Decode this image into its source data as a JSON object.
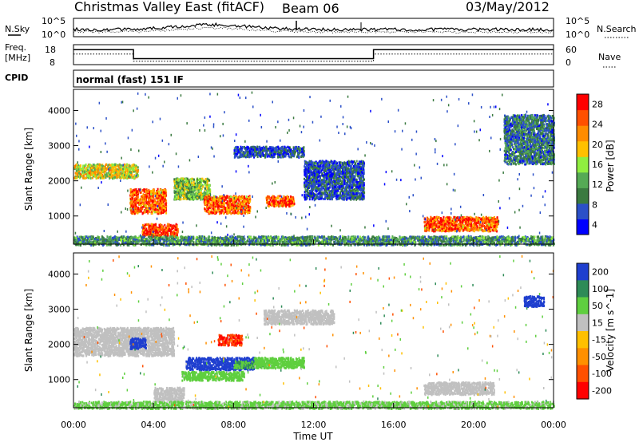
{
  "header": {
    "title": "Christmas Valley East (fitACF)",
    "beam": "Beam 06",
    "date": "03/May/2012"
  },
  "chart_data": [
    {
      "type": "line",
      "panel": "noise",
      "left_label": "N.Sky",
      "right_label": "N.Search",
      "left_ticks": [
        "10^5",
        "10^0"
      ],
      "right_ticks": [
        "10^5",
        "10^0"
      ]
    },
    {
      "type": "line",
      "panel": "frequency",
      "left_label_top": "Freq.",
      "left_label_bottom": "[MHz]",
      "right_label": "Nave",
      "left_ticks": [
        18,
        8
      ],
      "right_ticks": [
        60,
        0
      ],
      "freq_ylim": [
        8,
        18
      ],
      "nave_ylim": [
        0,
        60
      ],
      "freq_series": {
        "x": [
          0,
          3,
          3,
          15,
          15,
          24
        ],
        "y": [
          15.5,
          15.5,
          11,
          11,
          15.5,
          15.5
        ]
      },
      "nave_series": {
        "x": [
          0,
          3,
          3,
          15,
          15,
          24
        ],
        "y": [
          32,
          32,
          10,
          10,
          32,
          32
        ]
      }
    },
    {
      "type": "text",
      "panel": "cpid",
      "label": "CPID",
      "value": "normal (fast) 151 IF"
    },
    {
      "type": "heatmap",
      "panel": "power",
      "ylabel": "Slant Range [km]",
      "xlim": [
        0,
        24
      ],
      "ylim": [
        200,
        4600
      ],
      "yticks": [
        1000,
        2000,
        3000,
        4000
      ],
      "colorbar": {
        "label": "Power [dB]",
        "range": [
          0,
          32
        ],
        "tick_labels": [
          "28",
          "24",
          "20",
          "16",
          "12",
          "8",
          "4"
        ],
        "colors": [
          "#0000ff",
          "#2b50c8",
          "#3a7a40",
          "#55aa55",
          "#90ee40",
          "#ffc000",
          "#ff8c00",
          "#ff5000",
          "#ff0000"
        ]
      },
      "regions": [
        {
          "t0": 0.0,
          "t1": 3.2,
          "r0": 2100,
          "r1": 2500,
          "value": 18
        },
        {
          "t0": 2.8,
          "t1": 4.6,
          "r0": 1100,
          "r1": 1800,
          "value": 26
        },
        {
          "t0": 3.4,
          "t1": 5.2,
          "r0": 450,
          "r1": 800,
          "value": 28
        },
        {
          "t0": 5.0,
          "t1": 6.8,
          "r0": 1500,
          "r1": 2100,
          "value": 14
        },
        {
          "t0": 6.5,
          "t1": 8.8,
          "r0": 1100,
          "r1": 1600,
          "value": 26
        },
        {
          "t0": 9.6,
          "t1": 11.0,
          "r0": 1300,
          "r1": 1600,
          "value": 26
        },
        {
          "t0": 8.0,
          "t1": 11.5,
          "r0": 2700,
          "r1": 3000,
          "value": 6
        },
        {
          "t0": 11.5,
          "t1": 14.5,
          "r0": 1500,
          "r1": 2600,
          "value": 6
        },
        {
          "t0": 17.5,
          "t1": 21.2,
          "r0": 600,
          "r1": 1000,
          "value": 26
        },
        {
          "t0": 21.5,
          "t1": 24.0,
          "r0": 2500,
          "r1": 3900,
          "value": 8
        },
        {
          "t0": 0.0,
          "t1": 24.0,
          "r0": 200,
          "r1": 450,
          "value": 10
        }
      ]
    },
    {
      "type": "heatmap",
      "panel": "velocity",
      "ylabel": "Slant Range [km]",
      "xlabel": "Time UT",
      "xlim": [
        0,
        24
      ],
      "ylim": [
        200,
        4600
      ],
      "yticks": [
        1000,
        2000,
        3000,
        4000
      ],
      "xticks": [
        0,
        4,
        8,
        12,
        16,
        20,
        24
      ],
      "xtick_labels": [
        "00:00",
        "04:00",
        "08:00",
        "12:00",
        "16:00",
        "20:00",
        "00:00"
      ],
      "colorbar": {
        "label": "Velocity [m s^-1]",
        "tick_labels": [
          "200",
          "100",
          "50",
          "15",
          "-15",
          "-50",
          "-100",
          "-200"
        ],
        "colors": [
          "#1f3fcf",
          "#2e8b57",
          "#5fcf3f",
          "#c0c0c0",
          "#ffc000",
          "#ff9000",
          "#ff5000",
          "#ff0000"
        ]
      },
      "regions": [
        {
          "t0": 0.0,
          "t1": 5.0,
          "r0": 1700,
          "r1": 2500,
          "value": 0
        },
        {
          "t0": 2.8,
          "t1": 3.6,
          "r0": 1900,
          "r1": 2200,
          "value": 220
        },
        {
          "t0": 4.0,
          "t1": 5.5,
          "r0": 400,
          "r1": 800,
          "value": 0
        },
        {
          "t0": 5.6,
          "t1": 9.0,
          "r0": 1300,
          "r1": 1650,
          "value": 220
        },
        {
          "t0": 8.0,
          "t1": 9.5,
          "r0": 1350,
          "r1": 1550,
          "value": 70
        },
        {
          "t0": 5.4,
          "t1": 8.5,
          "r0": 1000,
          "r1": 1250,
          "value": 40
        },
        {
          "t0": 9.0,
          "t1": 11.5,
          "r0": 1350,
          "r1": 1650,
          "value": 40
        },
        {
          "t0": 7.2,
          "t1": 8.4,
          "r0": 2000,
          "r1": 2300,
          "value": -150
        },
        {
          "t0": 9.5,
          "t1": 13.0,
          "r0": 2600,
          "r1": 3000,
          "value": 0
        },
        {
          "t0": 17.5,
          "t1": 21.0,
          "r0": 600,
          "r1": 950,
          "value": 0
        },
        {
          "t0": 22.5,
          "t1": 23.5,
          "r0": 3100,
          "r1": 3400,
          "value": 200
        },
        {
          "t0": 0.0,
          "t1": 24.0,
          "r0": 200,
          "r1": 400,
          "value": 30
        }
      ]
    }
  ]
}
